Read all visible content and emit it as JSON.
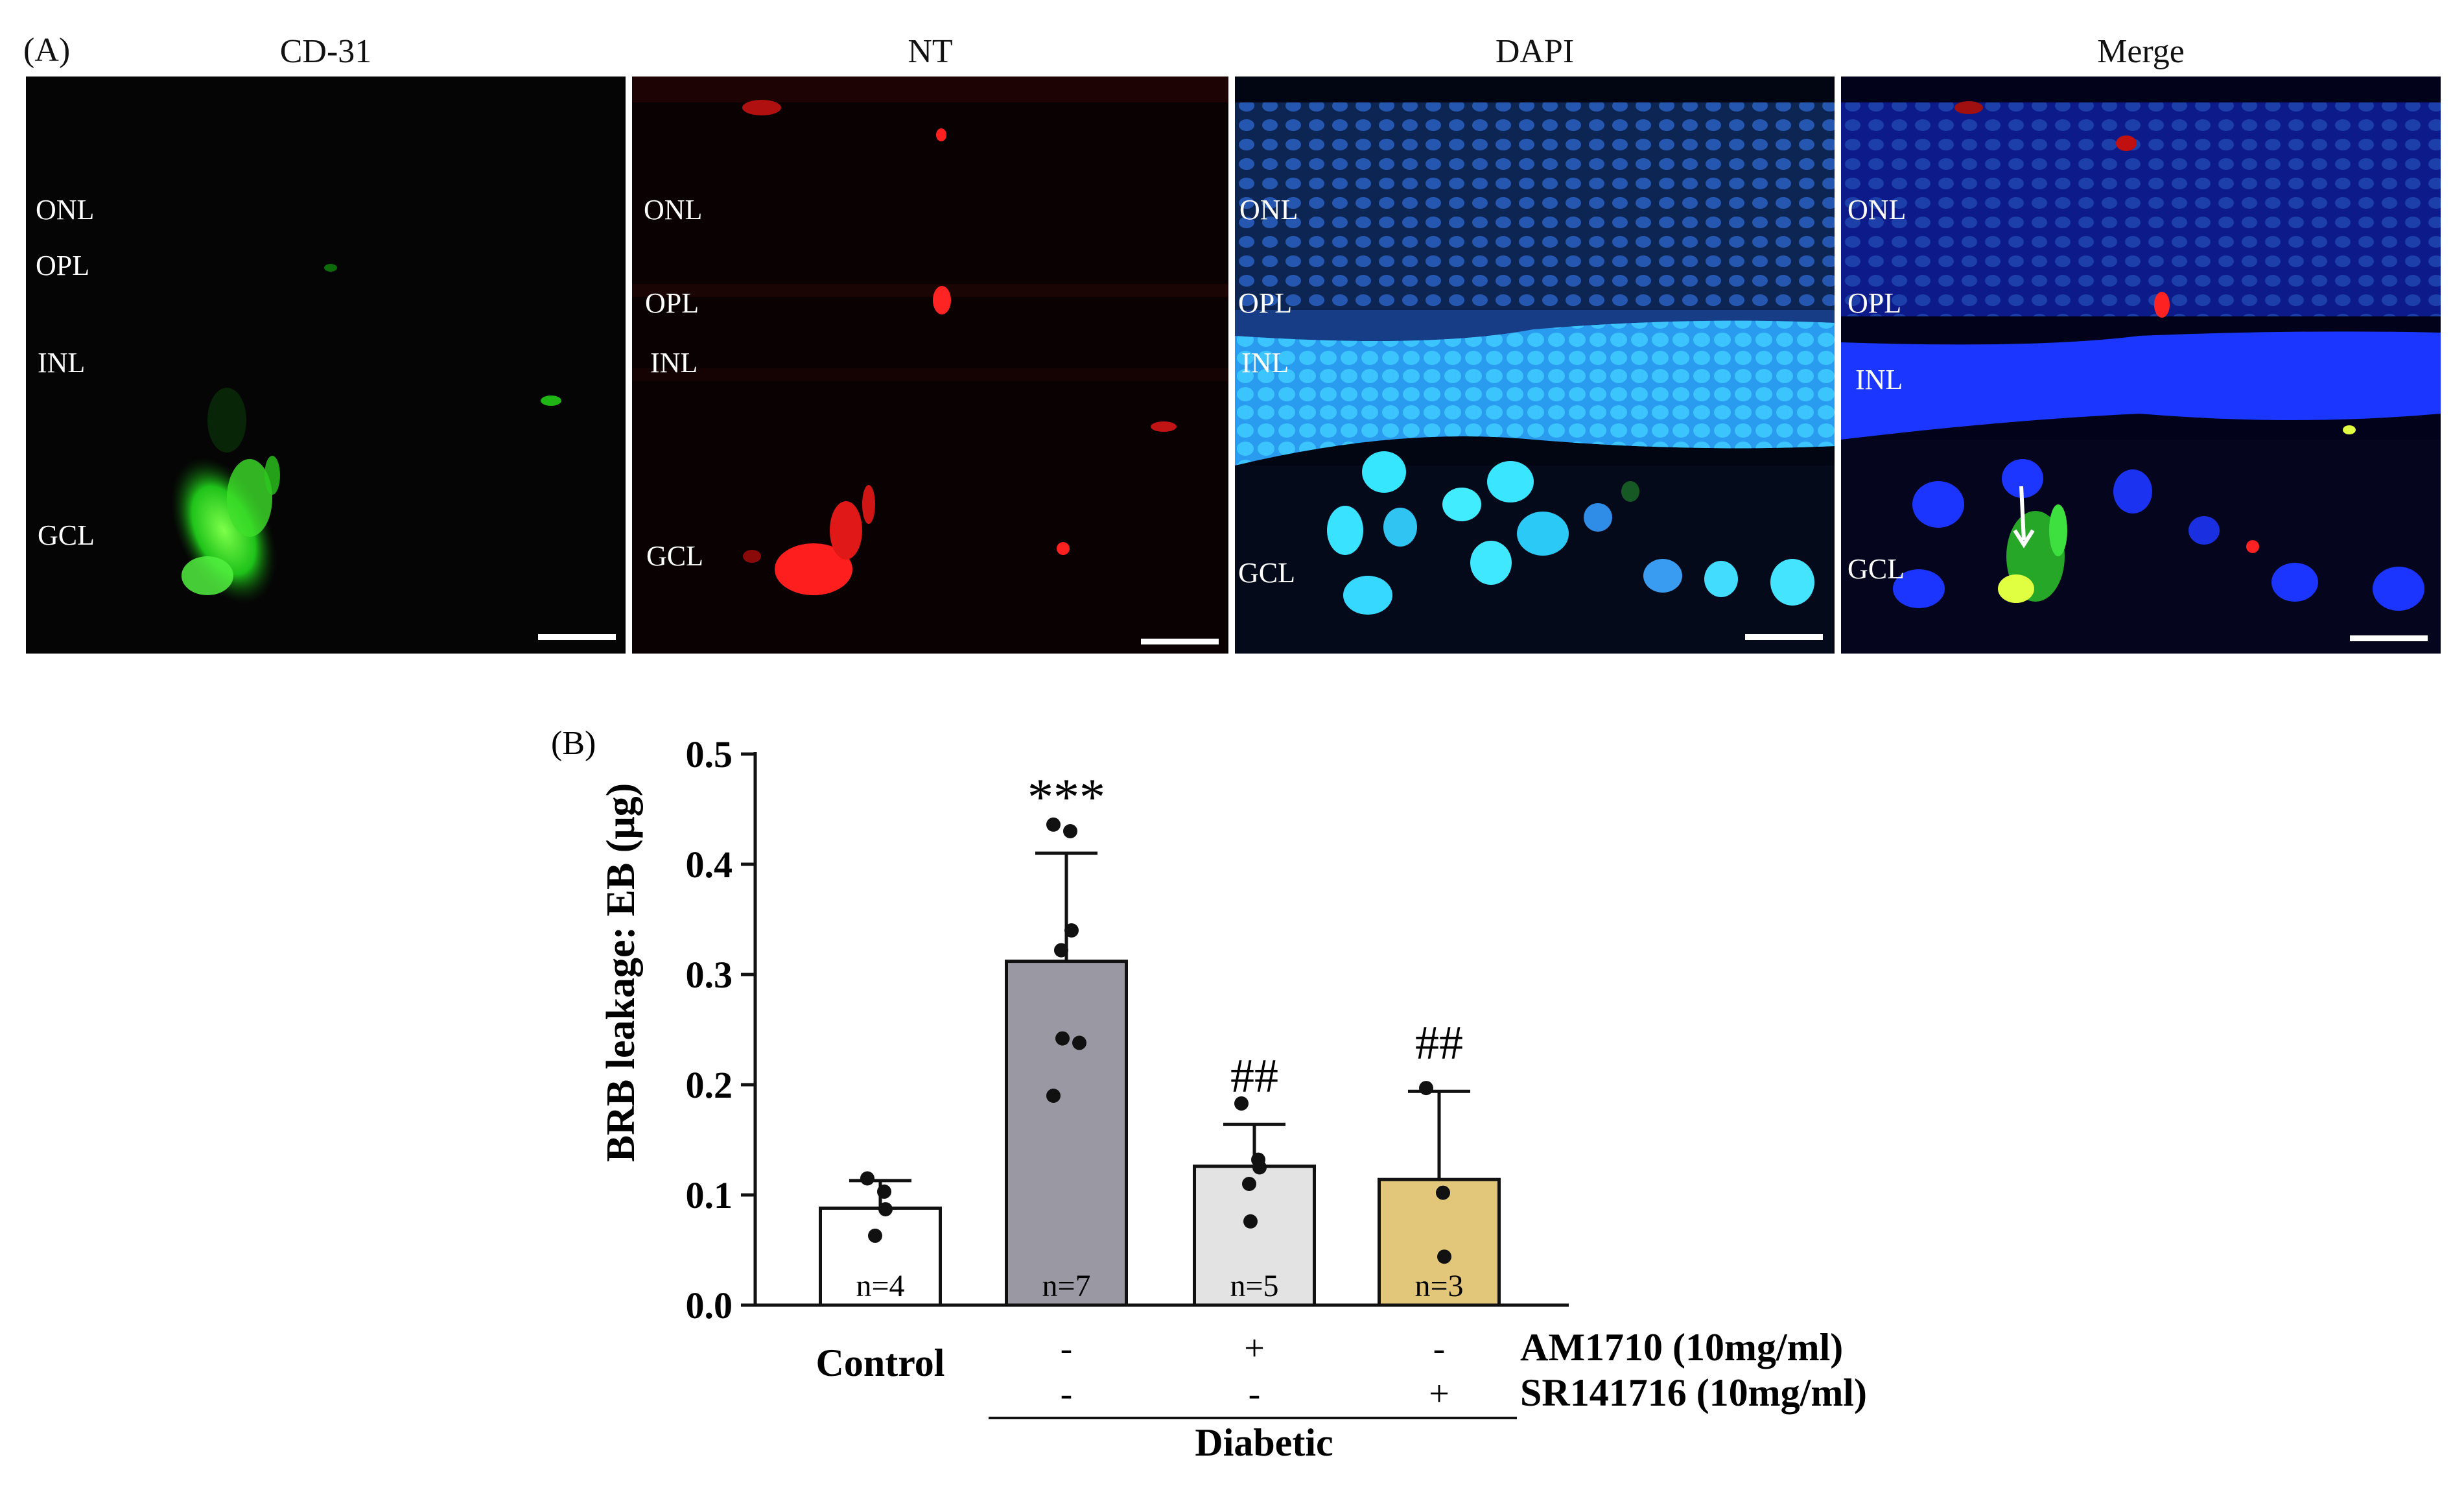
{
  "panel_a": {
    "letter": "(A)",
    "panels": [
      {
        "title": "CD-31",
        "labels": [
          "ONL",
          "OPL",
          "INL",
          "GCL"
        ],
        "stain": "green",
        "color": "#00ff22"
      },
      {
        "title": "NT",
        "labels": [
          "ONL",
          "OPL",
          "INL",
          "GCL"
        ],
        "stain": "red",
        "color": "#ff1a1a"
      },
      {
        "title": "DAPI",
        "labels": [
          "ONL",
          "OPL",
          "INL",
          "GCL"
        ],
        "stain": "blue",
        "color": "#1f6dff"
      },
      {
        "title": "Merge",
        "labels": [
          "ONL",
          "OPL",
          "INL",
          "GCL"
        ],
        "stain": "merge",
        "color": "#1533ff"
      }
    ]
  },
  "chart_data": {
    "panel_letter": "(B)",
    "type": "bar",
    "ylabel": "BRB leakage:  EB (μg)",
    "ylim": [
      0,
      0.5
    ],
    "yticks": [
      "0.0",
      "0.1",
      "0.2",
      "0.3",
      "0.4",
      "0.5"
    ],
    "ytick_values": [
      0,
      0.1,
      0.2,
      0.3,
      0.4,
      0.5
    ],
    "bars": [
      {
        "value": 0.088,
        "error": 0.025,
        "n_label": "n=4",
        "annotation": "",
        "color": "#ffffff",
        "points": [
          0.115,
          0.103,
          0.087,
          0.063
        ]
      },
      {
        "value": 0.312,
        "error": 0.098,
        "n_label": "n=7",
        "annotation": "***",
        "color": "#9a99a3",
        "points": [
          0.436,
          0.43,
          0.34,
          0.322,
          0.242,
          0.238,
          0.19
        ]
      },
      {
        "value": 0.126,
        "error": 0.038,
        "n_label": "n=5",
        "annotation": "##",
        "color": "#e3e3e3",
        "points": [
          0.183,
          0.132,
          0.125,
          0.11,
          0.076
        ]
      },
      {
        "value": 0.114,
        "error": 0.08,
        "n_label": "n=3",
        "annotation": "##",
        "color": "#e2c77a",
        "points": [
          0.197,
          0.102,
          0.044
        ]
      }
    ],
    "group_labels": {
      "control": "Control",
      "diabetic": "Diabetic",
      "row1_name": "AM1710 (10mg/ml)",
      "row2_name": "SR141716 (10mg/ml)",
      "row1_signs": [
        "-",
        "+",
        "-"
      ],
      "row2_signs": [
        "-",
        "-",
        "+"
      ]
    }
  }
}
